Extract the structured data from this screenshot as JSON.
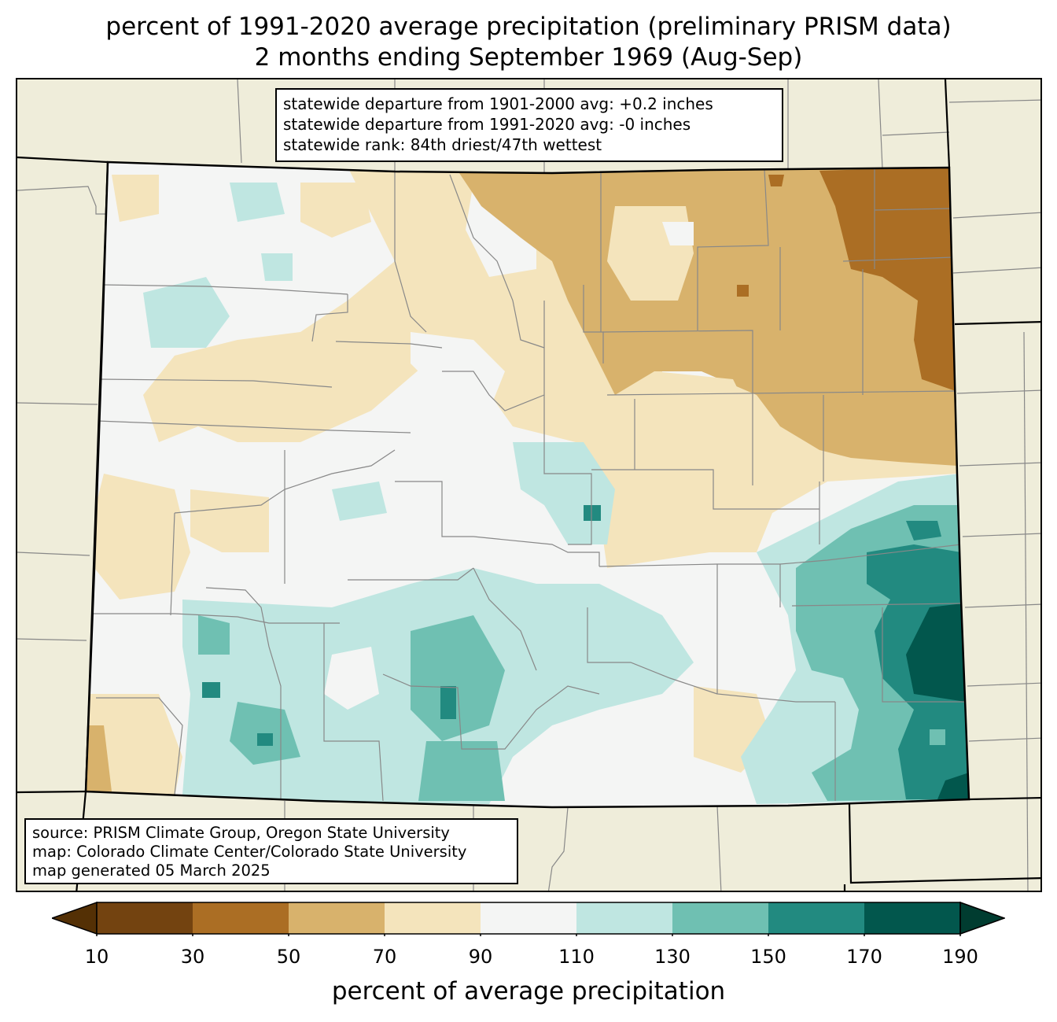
{
  "title": {
    "line1": "percent of 1991-2020 average precipitation (preliminary PRISM data)",
    "line2": "2 months ending September 1969 (Aug-Sep)"
  },
  "stats_box": {
    "line1": "statewide departure from 1901-2000 avg: +0.2 inches",
    "line2": "statewide departure from 1991-2020 avg: -0 inches",
    "line3": "statewide rank: 84th driest/47th wettest"
  },
  "source_box": {
    "line1": "source: PRISM Climate Group, Oregon State University",
    "line2": "map: Colorado Climate Center/Colorado State University",
    "line3": "map generated 05 March 2025"
  },
  "colorbar": {
    "label": "percent of average precipitation",
    "ticks": [
      "10",
      "30",
      "50",
      "70",
      "90",
      "110",
      "130",
      "150",
      "170",
      "190"
    ],
    "colors": [
      "#734310",
      "#ab6e24",
      "#d8b26c",
      "#f4e4bc",
      "#f4f5f4",
      "#bfe6e1",
      "#6fc0b2",
      "#228a80",
      "#02574d"
    ],
    "under_color": "#543005",
    "over_color": "#003c30"
  },
  "map_colors": {
    "background": "#efedda",
    "county_lines": "#888888",
    "state_lines": "#000000"
  }
}
